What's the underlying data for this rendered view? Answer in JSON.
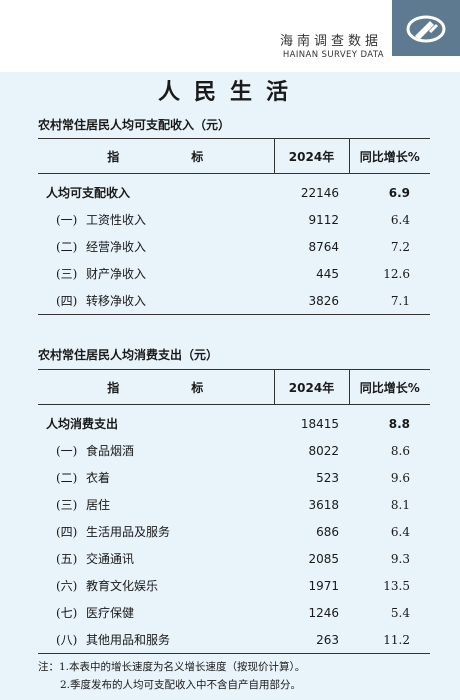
{
  "header": {
    "title": "海南调查数据",
    "subtitle": "HAINAN SURVEY DATA"
  },
  "section_title": "人民生活",
  "income_table": {
    "caption": "农村常住居民人均可支配收入（元）",
    "columns": [
      "指　标",
      "2024年",
      "同比增长%"
    ],
    "rows": [
      {
        "num": "",
        "name": "人均可支配收入",
        "value": "22146",
        "growth": "6.9"
      },
      {
        "num": "(一)",
        "name": "工资性收入",
        "value": "9112",
        "growth": "6.4"
      },
      {
        "num": "(二)",
        "name": "经营净收入",
        "value": "8764",
        "growth": "7.2"
      },
      {
        "num": "(三)",
        "name": "财产净收入",
        "value": "445",
        "growth": "12.6"
      },
      {
        "num": "(四)",
        "name": "转移净收入",
        "value": "3826",
        "growth": "7.1"
      }
    ]
  },
  "expense_table": {
    "caption": "农村常住居民人均消费支出（元）",
    "columns": [
      "指　标",
      "2024年",
      "同比增长%"
    ],
    "rows": [
      {
        "num": "",
        "name": "人均消费支出",
        "value": "18415",
        "growth": "8.8"
      },
      {
        "num": "(一)",
        "name": "食品烟酒",
        "value": "8022",
        "growth": "8.6"
      },
      {
        "num": "(二)",
        "name": "衣着",
        "value": "523",
        "growth": "9.6"
      },
      {
        "num": "(三)",
        "name": "居住",
        "value": "3618",
        "growth": "8.1"
      },
      {
        "num": "(四)",
        "name": "生活用品及服务",
        "value": "686",
        "growth": "6.4"
      },
      {
        "num": "(五)",
        "name": "交通通讯",
        "value": "2085",
        "growth": "9.3"
      },
      {
        "num": "(六)",
        "name": "教育文化娱乐",
        "value": "1971",
        "growth": "13.5"
      },
      {
        "num": "(七)",
        "name": "医疗保健",
        "value": "1246",
        "growth": "5.4"
      },
      {
        "num": "(八)",
        "name": "其他用品和服务",
        "value": "263",
        "growth": "11.2"
      }
    ]
  },
  "notes": [
    "注：1.本表中的增长速度为名义增长速度（按现价计算）。",
    "2.季度发布的人均可支配收入中不含自产自用部分。"
  ],
  "icons": {
    "logo": "hainan-survey-logo-icon"
  },
  "colors": {
    "background": "#e8f3fa",
    "logo_box": "#5e7a91"
  }
}
